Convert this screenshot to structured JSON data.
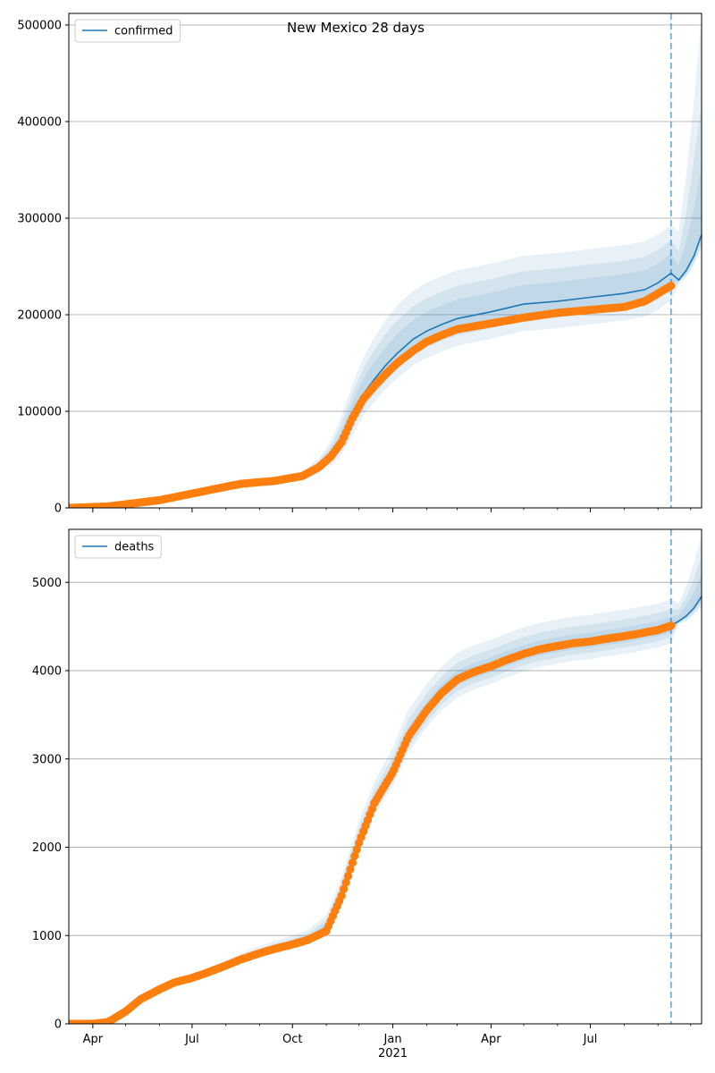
{
  "title": "New Mexico 28 days",
  "colors": {
    "model_line": "#1f77b4",
    "observed_points": "#ff7f0e",
    "band": "#1f77b4",
    "forecast_marker": "#1f77b4",
    "grid": "#b0b0b0"
  },
  "x_ticks": {
    "major": [
      {
        "date": "2020-04-01",
        "label": "Apr",
        "sublabel": ""
      },
      {
        "date": "2020-07-01",
        "label": "Jul",
        "sublabel": ""
      },
      {
        "date": "2020-10-01",
        "label": "Oct",
        "sublabel": ""
      },
      {
        "date": "2021-01-01",
        "label": "Jan",
        "sublabel": "2021"
      },
      {
        "date": "2021-04-01",
        "label": "Apr",
        "sublabel": ""
      },
      {
        "date": "2021-07-01",
        "label": "Jul",
        "sublabel": ""
      }
    ],
    "minor": [
      "2020-05-01",
      "2020-06-01",
      "2020-08-01",
      "2020-09-01",
      "2020-11-01",
      "2020-12-01",
      "2021-02-01",
      "2021-03-01",
      "2021-05-01",
      "2021-06-01",
      "2021-08-01",
      "2021-09-01",
      "2021-10-01"
    ]
  },
  "chart_data": [
    {
      "type": "line",
      "legend": "confirmed",
      "legend_position": "top-left",
      "xlim": [
        "2020-03-10",
        "2021-10-11"
      ],
      "ylim": [
        0,
        512000
      ],
      "yticks": [
        0,
        100000,
        200000,
        300000,
        400000,
        500000
      ],
      "grid": "horizontal",
      "forecast_start": "2021-09-13",
      "model": {
        "x": [
          "2020-03-10",
          "2020-04-15",
          "2020-06-01",
          "2020-07-15",
          "2020-08-15",
          "2020-09-15",
          "2020-10-10",
          "2020-10-25",
          "2020-11-05",
          "2020-11-15",
          "2020-11-25",
          "2020-12-05",
          "2020-12-15",
          "2020-12-25",
          "2021-01-05",
          "2021-01-20",
          "2021-02-01",
          "2021-02-15",
          "2021-03-01",
          "2021-04-01",
          "2021-05-01",
          "2021-06-01",
          "2021-07-01",
          "2021-08-01",
          "2021-08-20",
          "2021-09-01",
          "2021-09-13",
          "2021-09-20",
          "2021-09-27",
          "2021-10-04",
          "2021-10-11"
        ],
        "y": [
          0,
          1500,
          8000,
          18000,
          25000,
          28000,
          33000,
          42000,
          53000,
          70000,
          95000,
          118000,
          133000,
          147000,
          160000,
          175000,
          183000,
          190000,
          196000,
          203000,
          211000,
          214000,
          218000,
          222000,
          226000,
          233000,
          243000,
          236000,
          246000,
          261000,
          283000
        ]
      },
      "observed": {
        "x": [
          "2020-03-10",
          "2020-04-15",
          "2020-06-01",
          "2020-07-15",
          "2020-08-15",
          "2020-09-15",
          "2020-10-10",
          "2020-10-25",
          "2020-11-05",
          "2020-11-15",
          "2020-11-25",
          "2020-12-05",
          "2020-12-15",
          "2020-12-25",
          "2021-01-05",
          "2021-01-20",
          "2021-02-01",
          "2021-02-15",
          "2021-03-01",
          "2021-04-01",
          "2021-05-01",
          "2021-06-01",
          "2021-07-01",
          "2021-08-01",
          "2021-08-20",
          "2021-09-01",
          "2021-09-13"
        ],
        "y": [
          0,
          1500,
          8000,
          18000,
          25000,
          28000,
          33000,
          42000,
          53000,
          68000,
          93000,
          113000,
          126000,
          138000,
          150000,
          163000,
          172000,
          179000,
          185000,
          191000,
          197000,
          202000,
          205000,
          208000,
          214000,
          222000,
          230000
        ]
      },
      "bands": [
        {
          "lower_offset": [
            0,
            0,
            600,
            1500,
            2000,
            2500,
            3000,
            5000,
            9000,
            15000,
            20000,
            22000,
            23000,
            24000,
            26000,
            27000,
            28000,
            28000,
            28000,
            28000,
            28000,
            28000,
            28000,
            28000,
            28000,
            28000,
            28000,
            5000,
            7000,
            10000,
            14000
          ],
          "upper_offset": [
            0,
            0,
            800,
            2500,
            3500,
            4500,
            5000,
            9000,
            16000,
            25000,
            33000,
            38000,
            43000,
            47000,
            50000,
            50000,
            50000,
            50000,
            50000,
            50000,
            50000,
            50000,
            50000,
            50000,
            50000,
            50000,
            50000,
            50000,
            100000,
            160000,
            225000
          ]
        },
        {
          "lower_offset": [
            0,
            0,
            400,
            1000,
            1500,
            1800,
            2000,
            3500,
            6000,
            10000,
            13000,
            14000,
            15000,
            16000,
            17000,
            17000,
            17000,
            17000,
            17000,
            17000,
            17000,
            17000,
            17000,
            17000,
            17000,
            17000,
            17000,
            3000,
            5000,
            7000,
            10000
          ],
          "upper_offset": [
            0,
            0,
            600,
            1800,
            2500,
            3000,
            3500,
            6000,
            11000,
            17000,
            23000,
            27000,
            30000,
            33000,
            34000,
            34000,
            34000,
            34000,
            34000,
            34000,
            34000,
            34000,
            34000,
            34000,
            34000,
            34000,
            34000,
            30000,
            60000,
            100000,
            135000
          ]
        },
        {
          "lower_offset": [
            0,
            0,
            250,
            600,
            900,
            1100,
            1300,
            2000,
            3500,
            6000,
            8000,
            9000,
            9500,
            10000,
            10000,
            10000,
            10000,
            10000,
            10000,
            10000,
            10000,
            10000,
            10000,
            10000,
            10000,
            10000,
            10000,
            1500,
            3000,
            4000,
            6000
          ],
          "upper_offset": [
            0,
            0,
            350,
            1000,
            1500,
            1800,
            2000,
            3500,
            6500,
            10000,
            14000,
            16000,
            18000,
            19000,
            20000,
            20000,
            20000,
            20000,
            20000,
            20000,
            20000,
            20000,
            20000,
            20000,
            20000,
            20000,
            20000,
            15000,
            30000,
            50000,
            70000
          ]
        }
      ]
    },
    {
      "type": "line",
      "legend": "deaths",
      "legend_position": "top-left",
      "xlim": [
        "2020-03-10",
        "2021-10-11"
      ],
      "ylim": [
        0,
        5600
      ],
      "yticks": [
        0,
        1000,
        2000,
        3000,
        4000,
        5000
      ],
      "grid": "horizontal",
      "forecast_start": "2021-09-13",
      "model": {
        "x": [
          "2020-03-10",
          "2020-04-01",
          "2020-04-15",
          "2020-05-01",
          "2020-05-15",
          "2020-06-01",
          "2020-06-15",
          "2020-07-01",
          "2020-07-15",
          "2020-08-01",
          "2020-08-15",
          "2020-09-01",
          "2020-09-15",
          "2020-10-01",
          "2020-10-15",
          "2020-11-01",
          "2020-11-15",
          "2020-12-01",
          "2020-12-15",
          "2021-01-01",
          "2021-01-15",
          "2021-02-01",
          "2021-02-15",
          "2021-03-01",
          "2021-03-15",
          "2021-04-01",
          "2021-04-15",
          "2021-05-01",
          "2021-05-15",
          "2021-06-01",
          "2021-06-15",
          "2021-07-01",
          "2021-07-15",
          "2021-08-01",
          "2021-08-15",
          "2021-09-01",
          "2021-09-13",
          "2021-09-20",
          "2021-09-27",
          "2021-10-04",
          "2021-10-11"
        ],
        "y": [
          0,
          0,
          20,
          140,
          280,
          390,
          470,
          520,
          580,
          660,
          730,
          800,
          850,
          900,
          950,
          1100,
          1500,
          2100,
          2500,
          2850,
          3250,
          3550,
          3750,
          3900,
          3980,
          4050,
          4120,
          4190,
          4240,
          4280,
          4310,
          4330,
          4360,
          4390,
          4420,
          4460,
          4510,
          4560,
          4620,
          4710,
          4840
        ]
      },
      "observed": {
        "x": [
          "2020-03-10",
          "2020-04-01",
          "2020-04-15",
          "2020-05-01",
          "2020-05-15",
          "2020-06-01",
          "2020-06-15",
          "2020-07-01",
          "2020-07-15",
          "2020-08-01",
          "2020-08-15",
          "2020-09-01",
          "2020-09-15",
          "2020-10-01",
          "2020-10-15",
          "2020-11-01",
          "2020-11-15",
          "2020-12-01",
          "2020-12-15",
          "2021-01-01",
          "2021-01-15",
          "2021-02-01",
          "2021-02-15",
          "2021-03-01",
          "2021-03-15",
          "2021-04-01",
          "2021-04-15",
          "2021-05-01",
          "2021-05-15",
          "2021-06-01",
          "2021-06-15",
          "2021-07-01",
          "2021-07-15",
          "2021-08-01",
          "2021-08-15",
          "2021-09-01",
          "2021-09-13"
        ],
        "y": [
          0,
          0,
          20,
          140,
          280,
          390,
          470,
          520,
          580,
          660,
          730,
          800,
          850,
          900,
          950,
          1050,
          1450,
          2050,
          2500,
          2850,
          3250,
          3550,
          3750,
          3900,
          3980,
          4050,
          4120,
          4190,
          4240,
          4280,
          4310,
          4330,
          4360,
          4390,
          4420,
          4460,
          4510
        ]
      },
      "bands": [
        {
          "lower_offset": [
            0,
            0,
            0,
            0,
            5,
            10,
            15,
            20,
            25,
            30,
            35,
            40,
            45,
            50,
            55,
            65,
            80,
            100,
            130,
            160,
            180,
            190,
            200,
            200,
            200,
            200,
            200,
            200,
            200,
            200,
            200,
            200,
            200,
            200,
            200,
            200,
            200,
            30,
            60,
            80,
            120
          ],
          "upper_offset": [
            0,
            0,
            0,
            5,
            10,
            20,
            30,
            40,
            50,
            60,
            70,
            80,
            90,
            100,
            110,
            130,
            160,
            200,
            240,
            280,
            300,
            300,
            300,
            300,
            300,
            300,
            300,
            300,
            300,
            300,
            300,
            300,
            300,
            300,
            300,
            300,
            300,
            200,
            340,
            510,
            700
          ]
        },
        {
          "lower_offset": [
            0,
            0,
            0,
            0,
            3,
            6,
            10,
            14,
            18,
            22,
            26,
            30,
            33,
            36,
            40,
            46,
            56,
            70,
            90,
            110,
            125,
            130,
            130,
            130,
            130,
            130,
            130,
            130,
            130,
            130,
            130,
            130,
            130,
            130,
            130,
            130,
            130,
            20,
            40,
            55,
            80
          ],
          "upper_offset": [
            0,
            0,
            0,
            3,
            7,
            14,
            20,
            26,
            32,
            38,
            44,
            50,
            56,
            62,
            68,
            80,
            100,
            125,
            150,
            175,
            190,
            190,
            190,
            190,
            190,
            190,
            190,
            190,
            190,
            190,
            190,
            190,
            190,
            190,
            190,
            190,
            190,
            130,
            220,
            330,
            460
          ]
        },
        {
          "lower_offset": [
            0,
            0,
            0,
            0,
            2,
            3,
            5,
            7,
            9,
            11,
            13,
            15,
            17,
            19,
            21,
            25,
            30,
            40,
            50,
            60,
            70,
            70,
            70,
            70,
            70,
            70,
            70,
            70,
            70,
            70,
            70,
            70,
            70,
            70,
            70,
            70,
            70,
            10,
            20,
            30,
            40
          ],
          "upper_offset": [
            0,
            0,
            0,
            2,
            4,
            7,
            10,
            13,
            16,
            19,
            22,
            25,
            28,
            31,
            34,
            40,
            50,
            65,
            80,
            95,
            100,
            100,
            100,
            100,
            100,
            100,
            100,
            100,
            100,
            100,
            100,
            100,
            100,
            100,
            100,
            100,
            100,
            70,
            120,
            180,
            250
          ]
        }
      ]
    }
  ]
}
